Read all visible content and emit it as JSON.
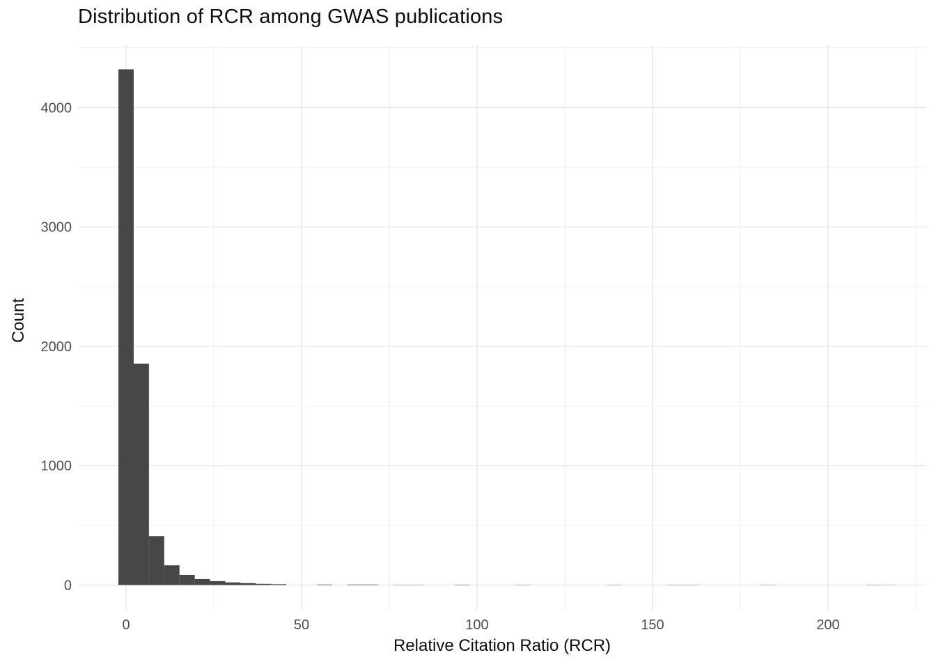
{
  "chart_data": {
    "type": "bar",
    "subtype": "histogram",
    "title": "Distribution of RCR among GWAS publications",
    "xlabel": "Relative Citation Ratio (RCR)",
    "ylabel": "Count",
    "bin_width": 4.35,
    "bin_start": -2.175,
    "bin_centers_note": "bin i is centered at i * bin_width, i.e. 0, 4.35, 8.7, ...",
    "counts": [
      4320,
      1855,
      410,
      165,
      85,
      50,
      33,
      22,
      16,
      10,
      7,
      0,
      0,
      4,
      0,
      4,
      4,
      0,
      2,
      2,
      0,
      0,
      3,
      0,
      0,
      0,
      2,
      0,
      0,
      0,
      0,
      0,
      2,
      0,
      0,
      0,
      2,
      2,
      0,
      0,
      0,
      0,
      2,
      0,
      0,
      0,
      0,
      0,
      0,
      2,
      1
    ],
    "x_ticks": [
      0,
      50,
      100,
      150,
      200
    ],
    "x_minor_gridlines": [
      25,
      75,
      125,
      175,
      225
    ],
    "y_ticks": [
      0,
      1000,
      2000,
      3000,
      4000
    ],
    "y_minor_gridlines": [
      500,
      1500,
      2500,
      3500,
      4500
    ],
    "xlim": [
      -13.7,
      228
    ],
    "ylim": [
      -215,
      4515
    ],
    "legend": "none",
    "grid": "on",
    "colors": {
      "bar_fill": "#474747",
      "grid_major": "#e4e4e4",
      "grid_minor": "#ededed",
      "tick_label": "#4d4d4d",
      "title_text": "#0d0d0d",
      "background": "#ffffff"
    }
  }
}
